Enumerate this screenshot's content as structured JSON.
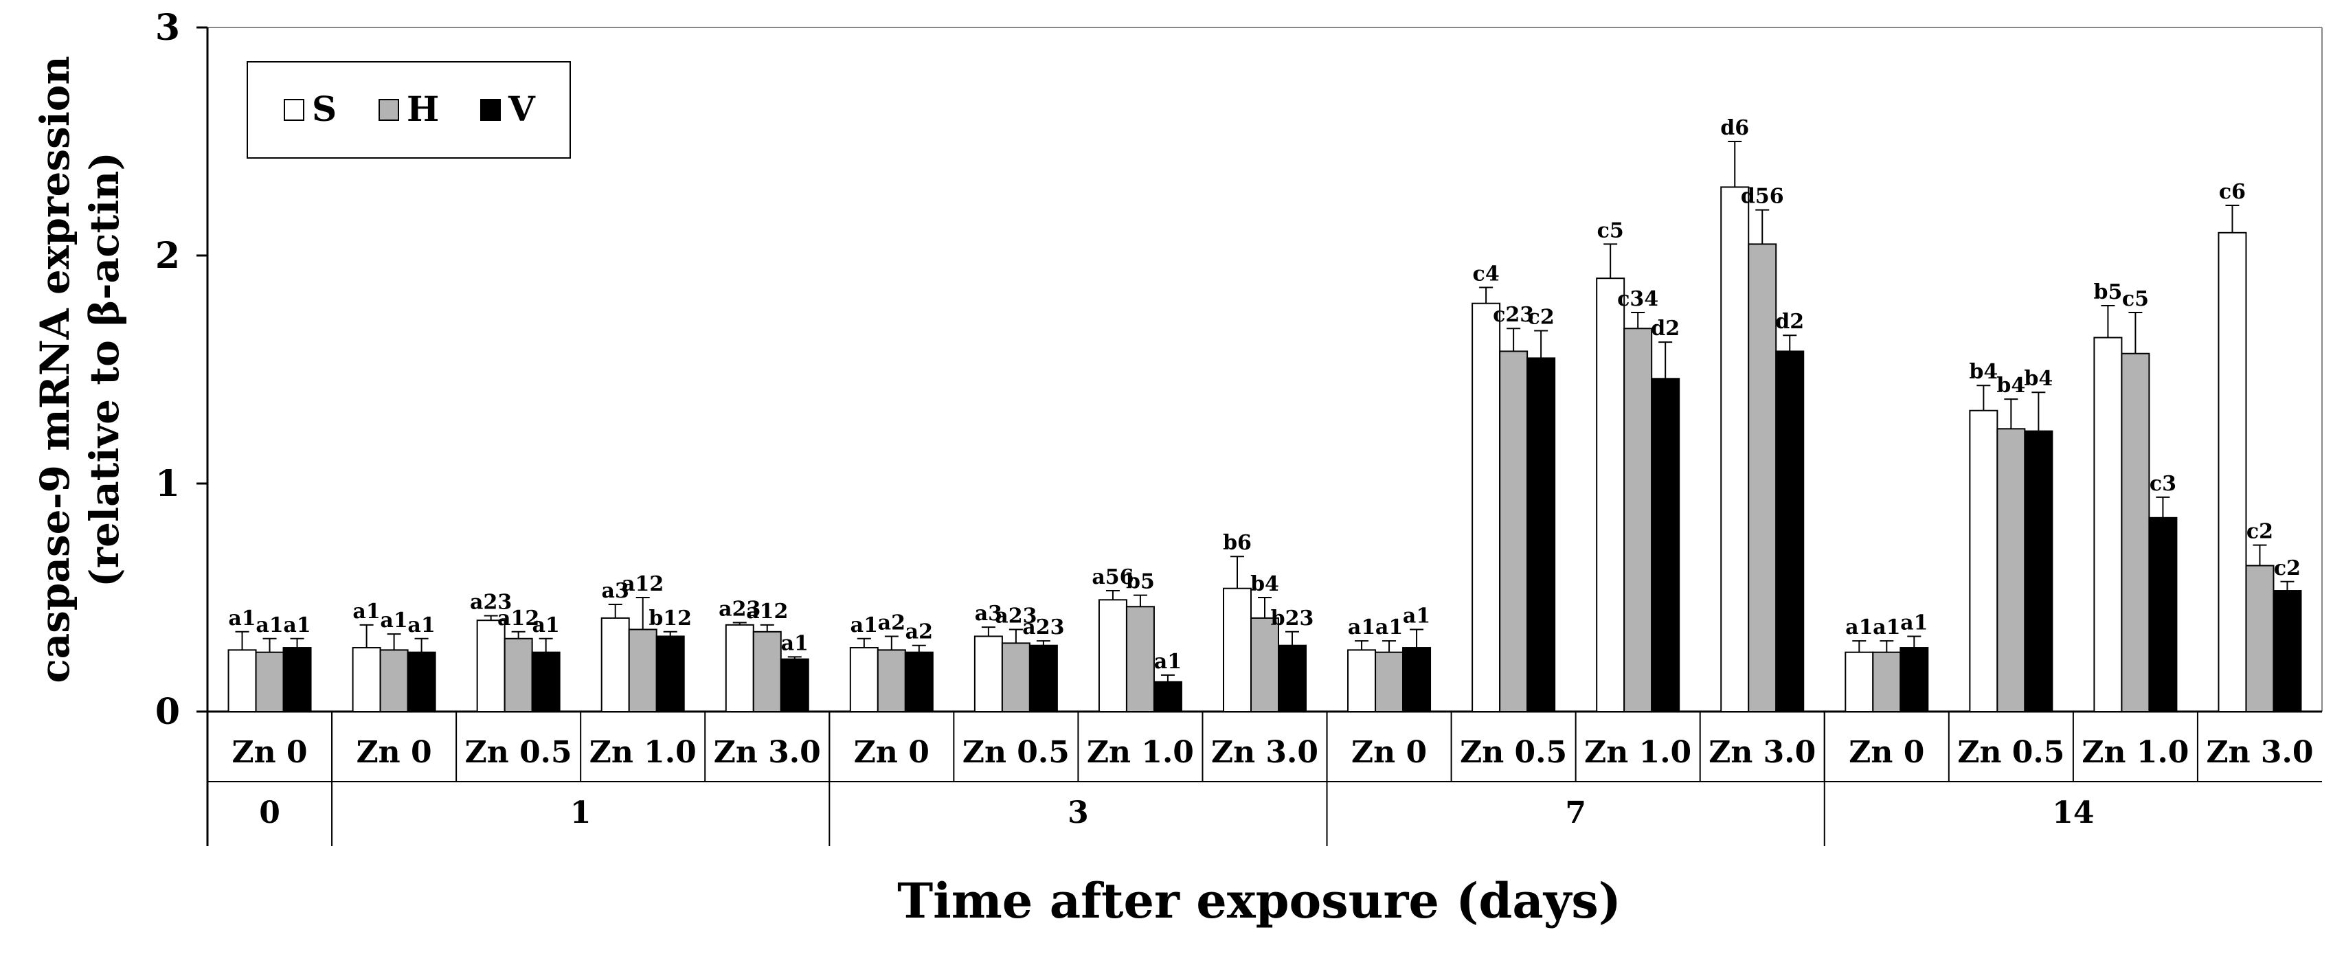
{
  "chart_data": {
    "type": "bar",
    "ylabel_line1": "caspase-9 mRNA expression",
    "ylabel_line2": "(relative to β-actin)",
    "xlabel": "Time after exposure (days)",
    "ylim": [
      0,
      3
    ],
    "yticks": [
      "0",
      "1",
      "2",
      "3"
    ],
    "series_names": [
      "S",
      "H",
      "V"
    ],
    "series_colors": [
      "#ffffff",
      "#b3b3b3",
      "#000000"
    ],
    "day_groups": [
      {
        "day": "0",
        "groups": [
          {
            "label": "Zn 0",
            "values": [
              0.27,
              0.26,
              0.28
            ],
            "errors": [
              0.08,
              0.06,
              0.04
            ],
            "letters": [
              "a1",
              "a1",
              "a1"
            ]
          }
        ]
      },
      {
        "day": "1",
        "groups": [
          {
            "label": "Zn 0",
            "values": [
              0.28,
              0.27,
              0.26
            ],
            "errors": [
              0.1,
              0.07,
              0.06
            ],
            "letters": [
              "a1",
              "a1",
              "a1"
            ]
          },
          {
            "label": "Zn 0.5",
            "values": [
              0.4,
              0.32,
              0.26
            ],
            "errors": [
              0.02,
              0.03,
              0.06
            ],
            "letters": [
              "a23",
              "a12",
              "a1"
            ]
          },
          {
            "label": "Zn 1.0",
            "values": [
              0.41,
              0.36,
              0.33
            ],
            "errors": [
              0.06,
              0.14,
              0.02
            ],
            "letters": [
              "a3",
              "a12",
              "b12"
            ]
          },
          {
            "label": "Zn 3.0",
            "values": [
              0.38,
              0.35,
              0.23
            ],
            "errors": [
              0.01,
              0.03,
              0.01
            ],
            "letters": [
              "a23",
              "a12",
              "a1"
            ]
          }
        ]
      },
      {
        "day": "3",
        "groups": [
          {
            "label": "Zn 0",
            "values": [
              0.28,
              0.27,
              0.26
            ],
            "errors": [
              0.04,
              0.06,
              0.03
            ],
            "letters": [
              "a1",
              "a2",
              "a2"
            ]
          },
          {
            "label": "Zn 0.5",
            "values": [
              0.33,
              0.3,
              0.29
            ],
            "errors": [
              0.04,
              0.06,
              0.02
            ],
            "letters": [
              "a3",
              "a23",
              "a23"
            ]
          },
          {
            "label": "Zn 1.0",
            "values": [
              0.49,
              0.46,
              0.13
            ],
            "errors": [
              0.04,
              0.05,
              0.03
            ],
            "letters": [
              "a56",
              "b5",
              "a1"
            ]
          },
          {
            "label": "Zn 3.0",
            "values": [
              0.54,
              0.41,
              0.29
            ],
            "errors": [
              0.14,
              0.09,
              0.06
            ],
            "letters": [
              "b6",
              "b4",
              "b23"
            ]
          }
        ]
      },
      {
        "day": "7",
        "groups": [
          {
            "label": "Zn 0",
            "values": [
              0.27,
              0.26,
              0.28
            ],
            "errors": [
              0.04,
              0.05,
              0.08
            ],
            "letters": [
              "a1",
              "a1",
              "a1"
            ]
          },
          {
            "label": "Zn 0.5",
            "values": [
              1.79,
              1.58,
              1.55
            ],
            "errors": [
              0.07,
              0.1,
              0.12
            ],
            "letters": [
              "c4",
              "c23",
              "c2"
            ]
          },
          {
            "label": "Zn 1.0",
            "values": [
              1.9,
              1.68,
              1.46
            ],
            "errors": [
              0.15,
              0.07,
              0.16
            ],
            "letters": [
              "c5",
              "c34",
              "d2"
            ]
          },
          {
            "label": "Zn 3.0",
            "values": [
              2.3,
              2.05,
              1.58
            ],
            "errors": [
              0.2,
              0.15,
              0.07
            ],
            "letters": [
              "d6",
              "d56",
              "d2"
            ]
          }
        ]
      },
      {
        "day": "14",
        "groups": [
          {
            "label": "Zn 0",
            "values": [
              0.26,
              0.26,
              0.28
            ],
            "errors": [
              0.05,
              0.05,
              0.05
            ],
            "letters": [
              "a1",
              "a1",
              "a1"
            ]
          },
          {
            "label": "Zn 0.5",
            "values": [
              1.32,
              1.24,
              1.23
            ],
            "errors": [
              0.11,
              0.13,
              0.17
            ],
            "letters": [
              "b4",
              "b4",
              "b4"
            ]
          },
          {
            "label": "Zn 1.0",
            "values": [
              1.64,
              1.57,
              0.85
            ],
            "errors": [
              0.14,
              0.18,
              0.09
            ],
            "letters": [
              "b5",
              "c5",
              "c3"
            ]
          },
          {
            "label": "Zn 3.0",
            "values": [
              2.1,
              0.64,
              0.53
            ],
            "errors": [
              0.12,
              0.09,
              0.04
            ],
            "letters": [
              "c6",
              "c2",
              "c2"
            ]
          }
        ]
      }
    ]
  }
}
